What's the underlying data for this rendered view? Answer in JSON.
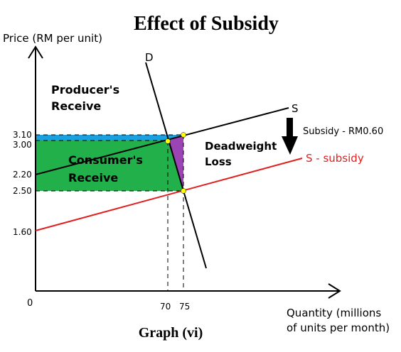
{
  "title": "Effect of Subsidy",
  "caption": "Graph (vi)",
  "axes": {
    "y_label": "Price (RM per unit)",
    "x_label_line1": "Quantity (millions",
    "x_label_line2": "of units per month)",
    "origin": "0"
  },
  "curve_labels": {
    "demand": "D",
    "supply": "S",
    "supply_after": "S - subsidy"
  },
  "subsidy_label": "Subsidy - RM0.60",
  "regions": {
    "producer_line1": "Producer's",
    "producer_line2": "Receive",
    "consumer_line1": "Consumer's",
    "consumer_line2": "Receive",
    "deadweight_line1": "Deadweight",
    "deadweight_line2": "Loss"
  },
  "price_ticks": [
    "3.10",
    "3.00",
    "2.20",
    "2.50",
    "1.60"
  ],
  "quantity_ticks": [
    "70",
    "75"
  ],
  "colors": {
    "demand": "#000000",
    "supply": "#000000",
    "supply_after": "#e02020",
    "producer_area": "#1aa0e0",
    "consumer_area": "#22b04a",
    "deadweight_area": "#9b44b4",
    "equilibrium_points": "#ffff00"
  }
}
